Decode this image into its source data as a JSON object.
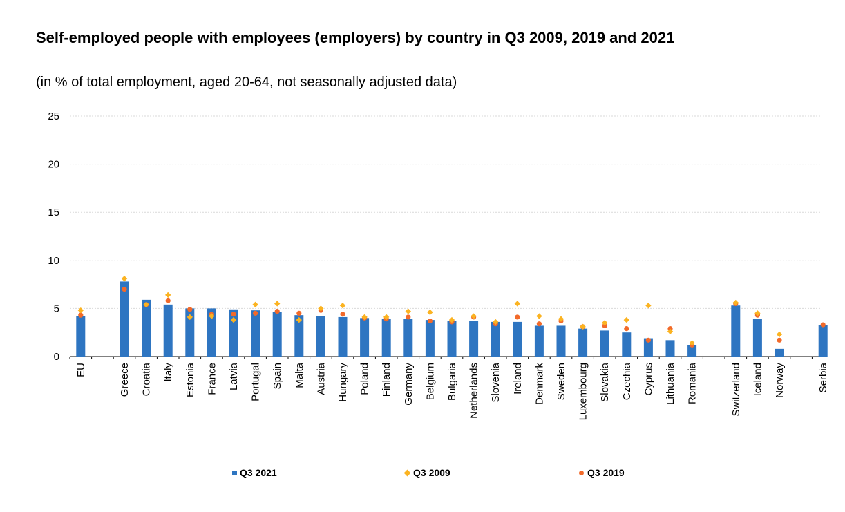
{
  "chart_data": {
    "type": "bar",
    "title": "Self-employed people with employees (employers) by country in Q3 2009, 2019 and 2021",
    "subtitle": "(in % of total employment, aged 20-64, not seasonally adjusted data)",
    "xlabel": "",
    "ylabel": "",
    "ylim": [
      0,
      25
    ],
    "yticks": [
      0,
      5,
      10,
      15,
      20,
      25
    ],
    "grid": true,
    "legend_position": "bottom",
    "colors": {
      "Q3 2021": "#2e75c1",
      "Q3 2009": "#fbb321",
      "Q3 2019": "#f26a2a"
    },
    "categories": [
      "EU",
      "Greece",
      "Croatia",
      "Italy",
      "Estonia",
      "France",
      "Latvia",
      "Portugal",
      "Spain",
      "Malta",
      "Austria",
      "Hungary",
      "Poland",
      "Finland",
      "Germany",
      "Belgium",
      "Bulgaria",
      "Netherlands",
      "Slovenia",
      "Ireland",
      "Denmark",
      "Sweden",
      "Luxembourg",
      "Slovakia",
      "Czechia",
      "Cyprus",
      "Lithuania",
      "Romania",
      "Switzerland",
      "Iceland",
      "Norway",
      "Serbia"
    ],
    "groups": [
      [
        "EU"
      ],
      [
        "Greece",
        "Croatia",
        "Italy",
        "Estonia",
        "France",
        "Latvia",
        "Portugal",
        "Spain",
        "Malta",
        "Austria",
        "Hungary",
        "Poland",
        "Finland",
        "Germany",
        "Belgium",
        "Bulgaria",
        "Netherlands",
        "Slovenia",
        "Ireland",
        "Denmark",
        "Sweden",
        "Luxembourg",
        "Slovakia",
        "Czechia",
        "Cyprus",
        "Lithuania",
        "Romania"
      ],
      [
        "Switzerland",
        "Iceland",
        "Norway"
      ],
      [
        "Serbia"
      ]
    ],
    "series": [
      {
        "name": "Q3 2021",
        "mark": "bar",
        "values": [
          4.2,
          7.8,
          5.9,
          5.4,
          5.0,
          5.0,
          4.9,
          4.8,
          4.6,
          4.3,
          4.2,
          4.1,
          4.0,
          3.9,
          3.9,
          3.8,
          3.7,
          3.7,
          3.6,
          3.6,
          3.2,
          3.2,
          2.9,
          2.7,
          2.5,
          1.9,
          1.7,
          1.2,
          5.3,
          3.9,
          0.8,
          3.3
        ]
      },
      {
        "name": "Q3 2009",
        "mark": "diamond",
        "values": [
          4.8,
          8.1,
          5.4,
          6.4,
          4.1,
          4.2,
          3.8,
          5.4,
          5.5,
          3.8,
          5.0,
          5.3,
          4.1,
          4.1,
          4.7,
          4.6,
          3.8,
          4.2,
          3.6,
          5.5,
          4.2,
          3.9,
          3.1,
          3.5,
          3.8,
          5.3,
          2.6,
          1.4,
          5.6,
          4.5,
          2.3,
          null
        ]
      },
      {
        "name": "Q3 2019",
        "mark": "dot",
        "values": [
          4.3,
          7.0,
          5.4,
          5.8,
          4.9,
          4.4,
          4.4,
          4.5,
          4.7,
          4.5,
          4.8,
          4.4,
          4.0,
          3.9,
          4.1,
          3.7,
          3.6,
          4.1,
          3.4,
          4.1,
          3.4,
          3.7,
          3.1,
          3.2,
          2.9,
          1.7,
          2.9,
          1.2,
          5.5,
          4.3,
          1.7,
          3.3
        ]
      }
    ]
  }
}
